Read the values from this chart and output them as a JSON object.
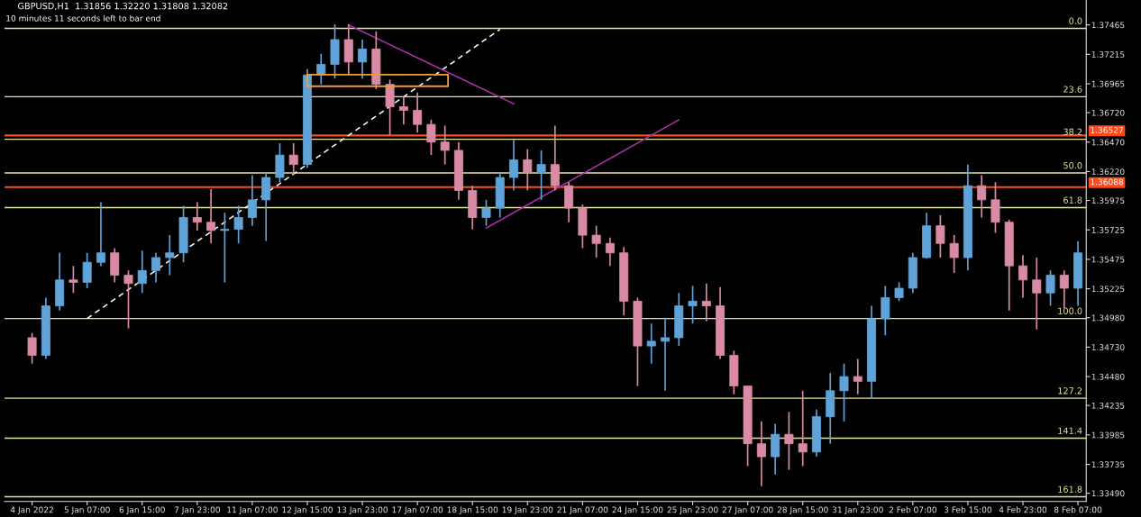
{
  "chart_data": {
    "type": "candlestick",
    "title": "GBPUSD,H1  1.31856 1.32220 1.31808 1.32082",
    "annotations": [
      "10 minutes 11 seconds left to bar end",
      {
        "text": "0.0",
        "y": 1.37435
      },
      {
        "text": "23.6",
        "y": 1.36855
      },
      {
        "text": "38.2",
        "y": 1.36494
      },
      {
        "text": "50.0",
        "y": 1.36208
      },
      {
        "text": "61.8",
        "y": 1.35914
      },
      {
        "text": "100.0",
        "y": 1.34973
      },
      {
        "text": "127.2",
        "y": 1.34296
      },
      {
        "text": "141.4",
        "y": 1.33957
      },
      {
        "text": "161.8",
        "y": 1.3346
      }
    ],
    "categories": [
      "4 Jan 2022",
      null,
      null,
      null,
      "5 Jan 07:00",
      null,
      null,
      null,
      "6 Jan 15:00",
      null,
      null,
      null,
      "7 Jan 23:00",
      null,
      null,
      null,
      "11 Jan 07:00",
      null,
      null,
      null,
      "12 Jan 15:00",
      null,
      null,
      null,
      "13 Jan 23:00",
      null,
      null,
      null,
      "17 Jan 07:00",
      null,
      null,
      null,
      "18 Jan 15:00",
      null,
      null,
      null,
      "19 Jan 23:00",
      null,
      null,
      null,
      "21 Jan 07:00",
      null,
      null,
      null,
      "24 Jan 15:00",
      null,
      null,
      null,
      "25 Jan 23:00",
      null,
      null,
      null,
      "27 Jan 07:00",
      null,
      null,
      null,
      "28 Jan 15:00",
      null,
      null,
      null,
      "31 Jan 23:00",
      null,
      null,
      null,
      "2 Feb 07:00",
      null,
      null,
      null,
      "3 Feb 15:00",
      null,
      null,
      null,
      "4 Feb 23:00",
      null,
      null,
      null,
      "8 Feb 07:00"
    ],
    "ohlc": [
      [
        1.3481,
        1.3485,
        1.3459,
        1.3466
      ],
      [
        1.3466,
        1.3515,
        1.3463,
        1.3508
      ],
      [
        1.3508,
        1.3553,
        1.3504,
        1.353
      ],
      [
        1.353,
        1.3542,
        1.3519,
        1.3528
      ],
      [
        1.3528,
        1.3553,
        1.3523,
        1.3545
      ],
      [
        1.3545,
        1.3596,
        1.3542,
        1.3553
      ],
      [
        1.3553,
        1.3557,
        1.3528,
        1.3534
      ],
      [
        1.3534,
        1.3538,
        1.3489,
        1.3527
      ],
      [
        1.3527,
        1.3555,
        1.3519,
        1.3538
      ],
      [
        1.3538,
        1.3553,
        1.3528,
        1.3549
      ],
      [
        1.3549,
        1.3568,
        1.3534,
        1.3553
      ],
      [
        1.3553,
        1.3593,
        1.3545,
        1.3583
      ],
      [
        1.3583,
        1.3596,
        1.3572,
        1.3579
      ],
      [
        1.3579,
        1.3607,
        1.3561,
        1.3572
      ],
      [
        1.3572,
        1.3587,
        1.3528,
        1.3573
      ],
      [
        1.3573,
        1.3593,
        1.3561,
        1.3583
      ],
      [
        1.3583,
        1.3619,
        1.3576,
        1.3598
      ],
      [
        1.3598,
        1.3621,
        1.3563,
        1.3617
      ],
      [
        1.3617,
        1.3646,
        1.3613,
        1.3636
      ],
      [
        1.3636,
        1.3646,
        1.3619,
        1.3628
      ],
      [
        1.3628,
        1.3709,
        1.3625,
        1.3704
      ],
      [
        1.3704,
        1.3722,
        1.3696,
        1.3713
      ],
      [
        1.3713,
        1.3747,
        1.3701,
        1.3734
      ],
      [
        1.3734,
        1.3747,
        1.3704,
        1.3715
      ],
      [
        1.3715,
        1.3734,
        1.3701,
        1.3726
      ],
      [
        1.3726,
        1.3741,
        1.3692,
        1.3696
      ],
      [
        1.3696,
        1.37,
        1.3653,
        1.3677
      ],
      [
        1.3677,
        1.3686,
        1.3662,
        1.3674
      ],
      [
        1.3674,
        1.3689,
        1.3655,
        1.3662
      ],
      [
        1.3662,
        1.3666,
        1.3636,
        1.3647
      ],
      [
        1.3647,
        1.3661,
        1.3628,
        1.364
      ],
      [
        1.364,
        1.3647,
        1.3598,
        1.3606
      ],
      [
        1.3606,
        1.361,
        1.3573,
        1.3583
      ],
      [
        1.3583,
        1.3598,
        1.3576,
        1.3591
      ],
      [
        1.3591,
        1.3621,
        1.3583,
        1.3617
      ],
      [
        1.3617,
        1.3649,
        1.3606,
        1.3632
      ],
      [
        1.3632,
        1.3641,
        1.3606,
        1.3621
      ],
      [
        1.3621,
        1.364,
        1.3598,
        1.3628
      ],
      [
        1.3628,
        1.3661,
        1.3606,
        1.361
      ],
      [
        1.361,
        1.3613,
        1.3579,
        1.3591
      ],
      [
        1.3591,
        1.3594,
        1.3557,
        1.3568
      ],
      [
        1.3568,
        1.3576,
        1.3549,
        1.3561
      ],
      [
        1.3561,
        1.3566,
        1.3542,
        1.3553
      ],
      [
        1.3553,
        1.3558,
        1.35,
        1.3512
      ],
      [
        1.3512,
        1.3515,
        1.344,
        1.3474
      ],
      [
        1.3474,
        1.3493,
        1.3459,
        1.3478
      ],
      [
        1.3478,
        1.3498,
        1.3436,
        1.3481
      ],
      [
        1.3481,
        1.3519,
        1.3474,
        1.3508
      ],
      [
        1.3508,
        1.3525,
        1.3493,
        1.3512
      ],
      [
        1.3512,
        1.3527,
        1.3495,
        1.3508
      ],
      [
        1.3508,
        1.3524,
        1.3463,
        1.3466
      ],
      [
        1.3466,
        1.347,
        1.3433,
        1.344
      ],
      [
        1.344,
        1.344,
        1.3372,
        1.3391
      ],
      [
        1.3391,
        1.341,
        1.3355,
        1.338
      ],
      [
        1.338,
        1.3408,
        1.3365,
        1.3399
      ],
      [
        1.3399,
        1.3418,
        1.3369,
        1.3391
      ],
      [
        1.3391,
        1.3436,
        1.3372,
        1.3384
      ],
      [
        1.3384,
        1.342,
        1.338,
        1.3414
      ],
      [
        1.3414,
        1.3451,
        1.3391,
        1.3436
      ],
      [
        1.3436,
        1.3459,
        1.341,
        1.3448
      ],
      [
        1.3448,
        1.3463,
        1.3433,
        1.3444
      ],
      [
        1.3444,
        1.3508,
        1.3429,
        1.3497
      ],
      [
        1.3497,
        1.3525,
        1.3483,
        1.3515
      ],
      [
        1.3515,
        1.3528,
        1.3512,
        1.3523
      ],
      [
        1.3523,
        1.3553,
        1.3519,
        1.3549
      ],
      [
        1.3549,
        1.3587,
        1.3548,
        1.3576
      ],
      [
        1.3576,
        1.3585,
        1.3549,
        1.3561
      ],
      [
        1.3561,
        1.3568,
        1.3536,
        1.3549
      ],
      [
        1.3549,
        1.3628,
        1.3538,
        1.361
      ],
      [
        1.361,
        1.3619,
        1.3583,
        1.3598
      ],
      [
        1.3598,
        1.3613,
        1.357,
        1.3579
      ],
      [
        1.3579,
        1.3581,
        1.3504,
        1.3542
      ],
      [
        1.3542,
        1.3551,
        1.3515,
        1.353
      ],
      [
        1.353,
        1.3549,
        1.3488,
        1.3519
      ],
      [
        1.3519,
        1.3538,
        1.3508,
        1.3534
      ],
      [
        1.3534,
        1.3538,
        1.3506,
        1.3523
      ],
      [
        1.3523,
        1.3563,
        1.3508,
        1.3553
      ]
    ],
    "colors": [
      "#d98aa5",
      "#5fa3d9",
      "#5fa3d9",
      "#d98aa5",
      "#5fa3d9",
      "#5fa3d9",
      "#d98aa5",
      "#d98aa5",
      "#5fa3d9",
      "#5fa3d9",
      "#5fa3d9",
      "#5fa3d9",
      "#d98aa5",
      "#d98aa5",
      "#5fa3d9",
      "#5fa3d9",
      "#5fa3d9",
      "#5fa3d9",
      "#5fa3d9",
      "#d98aa5",
      "#5fa3d9",
      "#5fa3d9",
      "#5fa3d9",
      "#d98aa5",
      "#5fa3d9",
      "#d98aa5",
      "#d98aa5",
      "#d98aa5",
      "#d98aa5",
      "#d98aa5",
      "#d98aa5",
      "#d98aa5",
      "#d98aa5",
      "#5fa3d9",
      "#5fa3d9",
      "#5fa3d9",
      "#d98aa5",
      "#5fa3d9",
      "#d98aa5",
      "#d98aa5",
      "#d98aa5",
      "#d98aa5",
      "#d98aa5",
      "#d98aa5",
      "#d98aa5",
      "#5fa3d9",
      "#5fa3d9",
      "#5fa3d9",
      "#5fa3d9",
      "#d98aa5",
      "#d98aa5",
      "#d98aa5",
      "#d98aa5",
      "#d98aa5",
      "#5fa3d9",
      "#d98aa5",
      "#d98aa5",
      "#5fa3d9",
      "#5fa3d9",
      "#5fa3d9",
      "#d98aa5",
      "#5fa3d9",
      "#5fa3d9",
      "#5fa3d9",
      "#5fa3d9",
      "#5fa3d9",
      "#d98aa5",
      "#d98aa5",
      "#5fa3d9",
      "#d98aa5",
      "#d98aa5",
      "#d98aa5",
      "#d98aa5",
      "#d98aa5",
      "#5fa3d9",
      "#d98aa5",
      "#5fa3d9"
    ],
    "series": [
      {
        "type": "line",
        "color": "#ffffff",
        "line_style": "dashed",
        "values": [
          null,
          null,
          null,
          null,
          1.34973,
          null,
          null,
          null,
          null,
          null,
          null,
          null,
          null,
          null,
          null,
          null,
          null,
          null,
          null,
          null,
          null,
          null,
          null,
          null,
          null,
          null,
          null,
          null,
          null,
          null,
          null,
          null,
          null,
          null,
          1.37427,
          null,
          null,
          null,
          null,
          null,
          null,
          null,
          null,
          null,
          null,
          null,
          null,
          null,
          null,
          null,
          null,
          null,
          null,
          null,
          null,
          null,
          null,
          null,
          null,
          null,
          null,
          null,
          null,
          null,
          null,
          null,
          null,
          null,
          null,
          null,
          null,
          null,
          null,
          null,
          null,
          null,
          null
        ]
      },
      {
        "type": "line",
        "color": "#b030b0",
        "line_style": "solid",
        "values": [
          null,
          null,
          null,
          null,
          null,
          null,
          null,
          null,
          null,
          null,
          null,
          null,
          null,
          null,
          null,
          null,
          null,
          null,
          null,
          null,
          null,
          null,
          null,
          1.37465,
          null,
          null,
          null,
          null,
          null,
          null,
          null,
          null,
          null,
          null,
          null,
          1.36795,
          null,
          null,
          null,
          null,
          null,
          null,
          null,
          null,
          null,
          null,
          null,
          null,
          null,
          null,
          null,
          null,
          null,
          null,
          null,
          null,
          null,
          null,
          null,
          null,
          null,
          null,
          null,
          null,
          null,
          null,
          null,
          null,
          null,
          null,
          null,
          null,
          null,
          null,
          null,
          null,
          null
        ]
      },
      {
        "type": "line",
        "color": "#b030b0",
        "line_style": "solid",
        "values": [
          null,
          null,
          null,
          null,
          null,
          null,
          null,
          null,
          null,
          null,
          null,
          null,
          null,
          null,
          null,
          null,
          null,
          null,
          null,
          null,
          null,
          null,
          null,
          null,
          null,
          null,
          null,
          null,
          null,
          null,
          null,
          null,
          null,
          1.35741,
          null,
          null,
          null,
          null,
          null,
          null,
          null,
          null,
          null,
          null,
          null,
          null,
          null,
          1.3666,
          null,
          null,
          null,
          null,
          null,
          null,
          null,
          null,
          null,
          null,
          null,
          null,
          null,
          null,
          null,
          null,
          null,
          null,
          null,
          null,
          null,
          null,
          null,
          null,
          null,
          null,
          null,
          null,
          null
        ]
      }
    ],
    "ylim": [
      1.3342,
      1.37676
    ],
    "yticks": [
      1.37465,
      1.37215,
      1.36965,
      {
        "value": 1.3672,
        "label": "1.36720"
      },
      {
        "value": 1.3647,
        "label": "1.36470"
      },
      {
        "value": 1.3622,
        "label": "1.36220"
      },
      1.35975,
      1.35725,
      1.35475,
      1.35225,
      {
        "value": 1.3498,
        "label": "1.34980"
      },
      {
        "value": 1.3473,
        "label": "1.34730"
      },
      {
        "value": 1.3448,
        "label": "1.34480"
      },
      1.34235,
      1.33985,
      1.33735,
      {
        "value": 1.3349,
        "label": "1.33490"
      }
    ],
    "ref_lines": [
      {
        "axis": "y",
        "value": 1.37435,
        "color": "#e6e6a0"
      },
      {
        "axis": "y",
        "value": 1.36855,
        "color": "#e6e6a0"
      },
      {
        "axis": "y",
        "value": 1.36494,
        "color": "#e6e6a0"
      },
      {
        "axis": "y",
        "value": 1.36208,
        "color": "#e6e6a0"
      },
      {
        "axis": "y",
        "value": 1.35914,
        "color": "#e6e6a0"
      },
      {
        "axis": "y",
        "value": 1.34973,
        "color": "#e6e6a0"
      },
      {
        "axis": "y",
        "value": 1.34296,
        "color": "#e6e6a0"
      },
      {
        "axis": "y",
        "value": 1.33957,
        "color": "#e6e6a0"
      },
      {
        "axis": "y",
        "value": 1.3346,
        "color": "#e6e6a0"
      },
      {
        "axis": "y",
        "value": 1.36527,
        "label": "1.36527",
        "color": "#ff4a1c"
      },
      {
        "axis": "y",
        "value": 1.36088,
        "label": "1.36088",
        "color": "#ff4a1c"
      }
    ],
    "grid": false
  }
}
